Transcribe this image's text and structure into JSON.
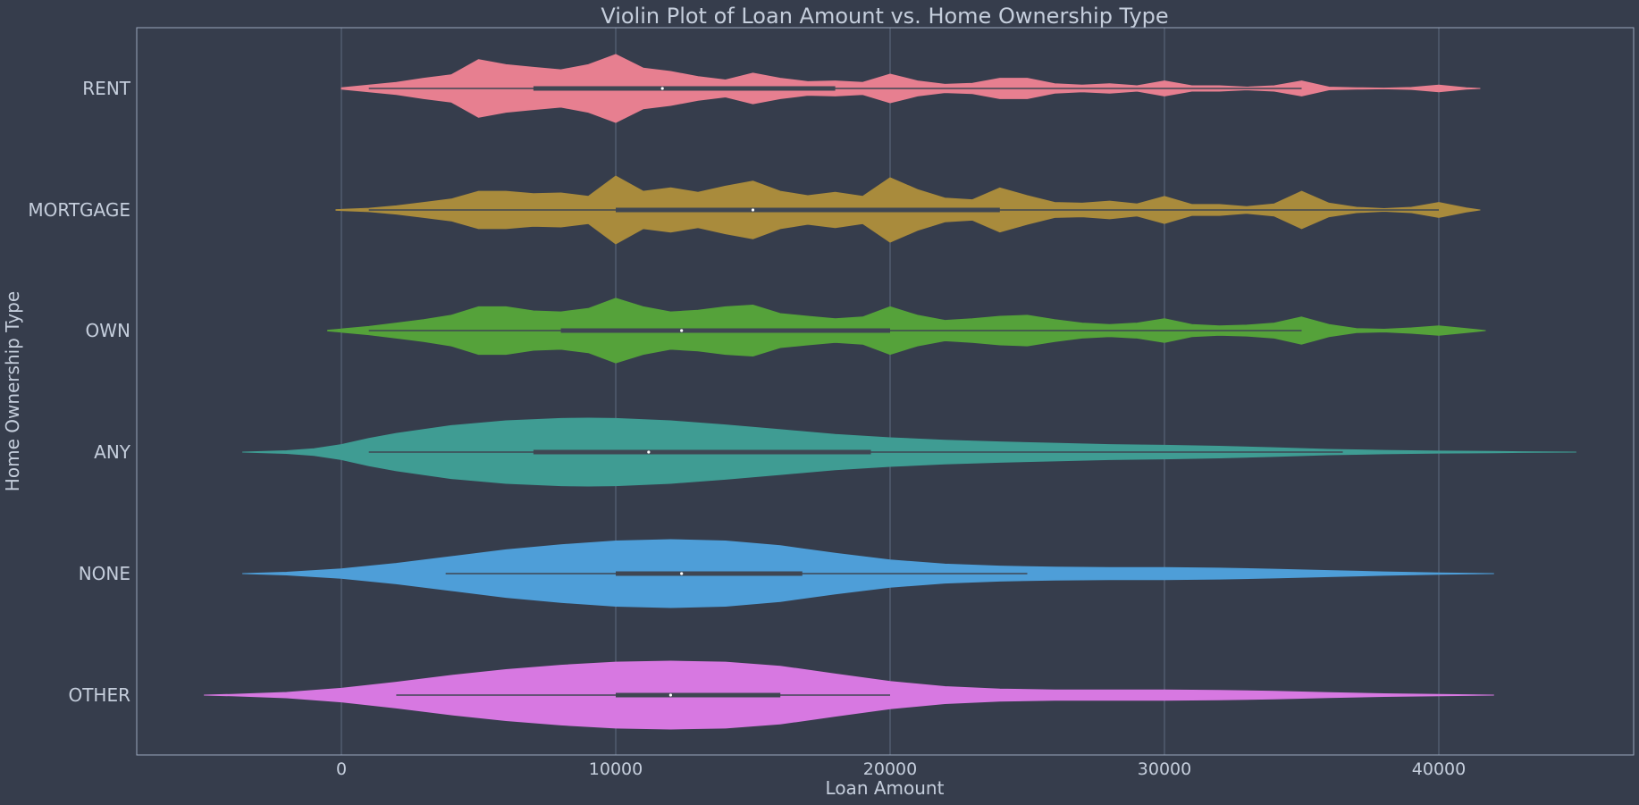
{
  "chart_data": {
    "type": "violin",
    "orientation": "horizontal",
    "title": "Violin Plot of Loan Amount vs. Home Ownership Type",
    "xlabel": "Loan Amount",
    "ylabel": "Home Ownership Type",
    "xlim": [
      -7500,
      45000
    ],
    "xticks": [
      0,
      10000,
      20000,
      30000,
      40000
    ],
    "grid": "vertical",
    "background": "#363d4c",
    "categories": [
      "RENT",
      "MORTGAGE",
      "OWN",
      "ANY",
      "NONE",
      "OTHER"
    ],
    "colors": [
      "#e77f90",
      "#a98b3c",
      "#55a23a",
      "#3f9c93",
      "#4e9ed8",
      "#d778e1"
    ],
    "series": [
      {
        "category": "RENT",
        "box": {
          "whisker_low": 1000,
          "q1": 7000,
          "median": 11700,
          "q3": 18000,
          "whisker_high": 35000
        },
        "density": [
          [
            0,
            0.02
          ],
          [
            1000,
            0.1
          ],
          [
            2000,
            0.18
          ],
          [
            3000,
            0.3
          ],
          [
            4000,
            0.4
          ],
          [
            5000,
            0.85
          ],
          [
            6000,
            0.7
          ],
          [
            7000,
            0.62
          ],
          [
            8000,
            0.55
          ],
          [
            9000,
            0.7
          ],
          [
            10000,
            1.0
          ],
          [
            11000,
            0.6
          ],
          [
            12000,
            0.5
          ],
          [
            13000,
            0.35
          ],
          [
            14000,
            0.25
          ],
          [
            15000,
            0.45
          ],
          [
            16000,
            0.3
          ],
          [
            17000,
            0.2
          ],
          [
            18000,
            0.22
          ],
          [
            19000,
            0.18
          ],
          [
            20000,
            0.42
          ],
          [
            21000,
            0.22
          ],
          [
            22000,
            0.12
          ],
          [
            23000,
            0.15
          ],
          [
            24000,
            0.3
          ],
          [
            25000,
            0.3
          ],
          [
            26000,
            0.14
          ],
          [
            27000,
            0.1
          ],
          [
            28000,
            0.14
          ],
          [
            29000,
            0.08
          ],
          [
            30000,
            0.22
          ],
          [
            31000,
            0.08
          ],
          [
            32000,
            0.08
          ],
          [
            33000,
            0.04
          ],
          [
            34000,
            0.08
          ],
          [
            35000,
            0.22
          ],
          [
            36000,
            0.04
          ],
          [
            37000,
            0.02
          ],
          [
            38000,
            0.01
          ],
          [
            39000,
            0.03
          ],
          [
            40000,
            0.1
          ],
          [
            41000,
            0.02
          ],
          [
            41500,
            0.0
          ]
        ]
      },
      {
        "category": "MORTGAGE",
        "box": {
          "whisker_low": 1000,
          "q1": 10000,
          "median": 15000,
          "q3": 24000,
          "whisker_high": 40000
        },
        "density": [
          [
            -200,
            0.01
          ],
          [
            1000,
            0.05
          ],
          [
            2000,
            0.12
          ],
          [
            3000,
            0.22
          ],
          [
            4000,
            0.32
          ],
          [
            5000,
            0.55
          ],
          [
            6000,
            0.55
          ],
          [
            7000,
            0.48
          ],
          [
            8000,
            0.5
          ],
          [
            9000,
            0.4
          ],
          [
            10000,
            1.0
          ],
          [
            11000,
            0.55
          ],
          [
            12000,
            0.65
          ],
          [
            13000,
            0.52
          ],
          [
            14000,
            0.7
          ],
          [
            15000,
            0.85
          ],
          [
            16000,
            0.55
          ],
          [
            17000,
            0.42
          ],
          [
            18000,
            0.52
          ],
          [
            19000,
            0.4
          ],
          [
            20000,
            0.95
          ],
          [
            21000,
            0.6
          ],
          [
            22000,
            0.35
          ],
          [
            23000,
            0.3
          ],
          [
            24000,
            0.65
          ],
          [
            25000,
            0.42
          ],
          [
            26000,
            0.22
          ],
          [
            27000,
            0.2
          ],
          [
            28000,
            0.26
          ],
          [
            29000,
            0.18
          ],
          [
            30000,
            0.4
          ],
          [
            31000,
            0.16
          ],
          [
            32000,
            0.16
          ],
          [
            33000,
            0.1
          ],
          [
            34000,
            0.18
          ],
          [
            35000,
            0.55
          ],
          [
            36000,
            0.2
          ],
          [
            37000,
            0.08
          ],
          [
            38000,
            0.04
          ],
          [
            39000,
            0.08
          ],
          [
            40000,
            0.22
          ],
          [
            41000,
            0.06
          ],
          [
            41500,
            0.0
          ]
        ]
      },
      {
        "category": "OWN",
        "box": {
          "whisker_low": 1000,
          "q1": 8000,
          "median": 12400,
          "q3": 20000,
          "whisker_high": 35000
        },
        "density": [
          [
            -500,
            0.01
          ],
          [
            1000,
            0.12
          ],
          [
            2000,
            0.22
          ],
          [
            3000,
            0.32
          ],
          [
            4000,
            0.45
          ],
          [
            5000,
            0.7
          ],
          [
            6000,
            0.7
          ],
          [
            7000,
            0.58
          ],
          [
            8000,
            0.55
          ],
          [
            9000,
            0.65
          ],
          [
            10000,
            0.95
          ],
          [
            11000,
            0.7
          ],
          [
            12000,
            0.55
          ],
          [
            13000,
            0.6
          ],
          [
            14000,
            0.7
          ],
          [
            15000,
            0.75
          ],
          [
            16000,
            0.5
          ],
          [
            17000,
            0.42
          ],
          [
            18000,
            0.35
          ],
          [
            19000,
            0.4
          ],
          [
            20000,
            0.7
          ],
          [
            21000,
            0.45
          ],
          [
            22000,
            0.3
          ],
          [
            23000,
            0.35
          ],
          [
            24000,
            0.42
          ],
          [
            25000,
            0.45
          ],
          [
            26000,
            0.32
          ],
          [
            27000,
            0.22
          ],
          [
            28000,
            0.18
          ],
          [
            29000,
            0.22
          ],
          [
            30000,
            0.35
          ],
          [
            31000,
            0.18
          ],
          [
            32000,
            0.14
          ],
          [
            33000,
            0.16
          ],
          [
            34000,
            0.22
          ],
          [
            35000,
            0.4
          ],
          [
            36000,
            0.18
          ],
          [
            37000,
            0.06
          ],
          [
            38000,
            0.04
          ],
          [
            39000,
            0.08
          ],
          [
            40000,
            0.14
          ],
          [
            41000,
            0.06
          ],
          [
            41700,
            0.0
          ]
        ]
      },
      {
        "category": "ANY",
        "box": {
          "whisker_low": 1000,
          "q1": 7000,
          "median": 11200,
          "q3": 19300,
          "whisker_high": 36500
        },
        "density": [
          [
            -3600,
            0.0
          ],
          [
            -2000,
            0.04
          ],
          [
            -1000,
            0.1
          ],
          [
            0,
            0.22
          ],
          [
            1000,
            0.4
          ],
          [
            2000,
            0.55
          ],
          [
            4000,
            0.78
          ],
          [
            6000,
            0.92
          ],
          [
            8000,
            0.99
          ],
          [
            9000,
            1.0
          ],
          [
            10000,
            0.99
          ],
          [
            12000,
            0.92
          ],
          [
            14000,
            0.8
          ],
          [
            16000,
            0.66
          ],
          [
            18000,
            0.52
          ],
          [
            20000,
            0.42
          ],
          [
            22000,
            0.35
          ],
          [
            24000,
            0.3
          ],
          [
            26000,
            0.26
          ],
          [
            28000,
            0.22
          ],
          [
            30000,
            0.2
          ],
          [
            32000,
            0.17
          ],
          [
            34000,
            0.13
          ],
          [
            36000,
            0.08
          ],
          [
            38000,
            0.05
          ],
          [
            40000,
            0.03
          ],
          [
            42000,
            0.02
          ],
          [
            43000,
            0.01
          ],
          [
            45000,
            0.0
          ]
        ]
      },
      {
        "category": "NONE",
        "box": {
          "whisker_low": 3800,
          "q1": 10000,
          "median": 12400,
          "q3": 16800,
          "whisker_high": 25000
        },
        "density": [
          [
            -3600,
            0.0
          ],
          [
            -2000,
            0.04
          ],
          [
            0,
            0.14
          ],
          [
            2000,
            0.3
          ],
          [
            4000,
            0.5
          ],
          [
            6000,
            0.7
          ],
          [
            8000,
            0.85
          ],
          [
            10000,
            0.96
          ],
          [
            12000,
            1.0
          ],
          [
            14000,
            0.96
          ],
          [
            16000,
            0.82
          ],
          [
            18000,
            0.6
          ],
          [
            20000,
            0.4
          ],
          [
            22000,
            0.28
          ],
          [
            24000,
            0.22
          ],
          [
            26000,
            0.19
          ],
          [
            28000,
            0.18
          ],
          [
            30000,
            0.18
          ],
          [
            32000,
            0.16
          ],
          [
            34000,
            0.13
          ],
          [
            36000,
            0.09
          ],
          [
            38000,
            0.05
          ],
          [
            40000,
            0.02
          ],
          [
            42000,
            0.0
          ]
        ]
      },
      {
        "category": "OTHER",
        "box": {
          "whisker_low": 2000,
          "q1": 10000,
          "median": 12000,
          "q3": 16000,
          "whisker_high": 20000
        },
        "density": [
          [
            -5000,
            0.0
          ],
          [
            -4000,
            0.02
          ],
          [
            -2000,
            0.08
          ],
          [
            0,
            0.2
          ],
          [
            2000,
            0.38
          ],
          [
            4000,
            0.58
          ],
          [
            6000,
            0.75
          ],
          [
            8000,
            0.88
          ],
          [
            10000,
            0.97
          ],
          [
            12000,
            1.0
          ],
          [
            14000,
            0.97
          ],
          [
            16000,
            0.85
          ],
          [
            18000,
            0.62
          ],
          [
            20000,
            0.4
          ],
          [
            22000,
            0.25
          ],
          [
            24000,
            0.18
          ],
          [
            26000,
            0.15
          ],
          [
            28000,
            0.15
          ],
          [
            30000,
            0.15
          ],
          [
            32000,
            0.14
          ],
          [
            34000,
            0.11
          ],
          [
            36000,
            0.07
          ],
          [
            38000,
            0.04
          ],
          [
            40000,
            0.02
          ],
          [
            42000,
            0.0
          ]
        ]
      }
    ]
  }
}
